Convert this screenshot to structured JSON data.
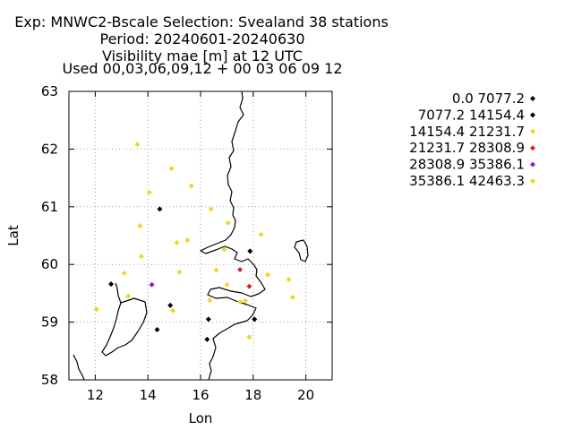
{
  "chart_data": {
    "type": "scatter",
    "title_lines": [
      "Exp: MNWC2-Bscale   Selection: Svealand     38 stations",
      "Period: 20240601-20240630",
      "Visibility mae [m] at  12 UTC",
      "Used 00,03,06,09,12 + 00 03 06 09 12"
    ],
    "xlabel": "Lon",
    "ylabel": "Lat",
    "xlim": [
      11,
      21
    ],
    "ylim": [
      58,
      63
    ],
    "xticks": [
      12,
      14,
      16,
      18,
      20
    ],
    "yticks": [
      58,
      59,
      60,
      61,
      62,
      63
    ],
    "grid": true,
    "legend_position": "right",
    "series": [
      {
        "name": "0.0 7077.2",
        "color": "#000000",
        "points": []
      },
      {
        "name": "7077.2 14154.4",
        "color": "#000000",
        "points": [
          [
            14.45,
            60.96
          ],
          [
            12.6,
            59.66
          ],
          [
            14.85,
            59.29
          ],
          [
            14.35,
            58.87
          ],
          [
            16.3,
            59.05
          ],
          [
            16.25,
            58.7
          ],
          [
            17.88,
            60.23
          ],
          [
            18.05,
            59.05
          ]
        ]
      },
      {
        "name": "14154.4 21231.7",
        "color": "#f0d81e",
        "points": [
          [
            13.6,
            62.08
          ],
          [
            14.9,
            61.66
          ],
          [
            14.05,
            61.25
          ],
          [
            15.65,
            61.36
          ],
          [
            16.4,
            60.96
          ],
          [
            13.7,
            60.67
          ],
          [
            17.05,
            60.72
          ],
          [
            18.3,
            60.52
          ],
          [
            15.1,
            60.38
          ],
          [
            15.5,
            60.42
          ],
          [
            13.75,
            60.14
          ],
          [
            16.9,
            60.26
          ],
          [
            16.6,
            59.9
          ],
          [
            15.2,
            59.87
          ],
          [
            13.1,
            59.85
          ],
          [
            13.25,
            59.45
          ],
          [
            17.0,
            59.65
          ],
          [
            16.35,
            59.38
          ],
          [
            17.7,
            59.37
          ],
          [
            18.55,
            59.82
          ],
          [
            19.35,
            59.74
          ],
          [
            19.5,
            59.43
          ],
          [
            12.05,
            59.22
          ],
          [
            14.95,
            59.2
          ],
          [
            17.5,
            59.35
          ],
          [
            17.85,
            58.74
          ]
        ]
      },
      {
        "name": "21231.7 28308.9",
        "color": "#e02020",
        "points": [
          [
            17.5,
            59.91
          ],
          [
            17.85,
            59.62
          ]
        ]
      },
      {
        "name": "28308.9 35386.1",
        "color": "#8a1ad0",
        "points": [
          [
            14.15,
            59.65
          ]
        ]
      },
      {
        "name": "35386.1 42463.3",
        "color": "#f0d81e",
        "points": []
      }
    ]
  }
}
